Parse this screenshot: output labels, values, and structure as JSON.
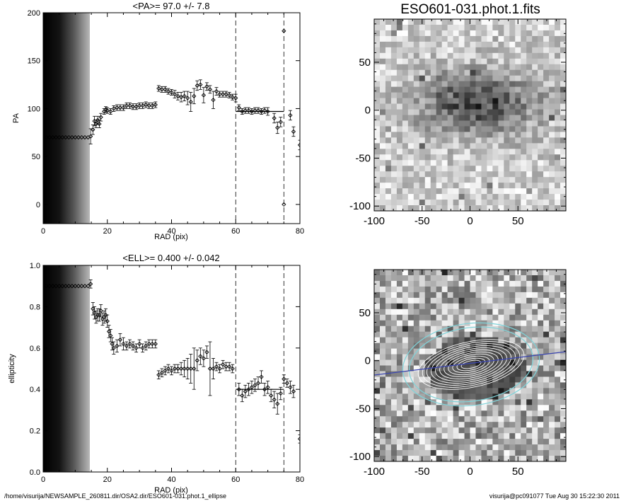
{
  "chart_data": [
    {
      "type": "scatter",
      "title": "<PA>=  97.0 +/-   7.8",
      "xlabel": "RAD (pix)",
      "ylabel": "PA",
      "xlim": [
        0,
        80
      ],
      "ylim": [
        -20,
        200
      ],
      "xticks": [
        0,
        20,
        40,
        60,
        80
      ],
      "yticks": [
        0,
        50,
        100,
        150,
        200
      ],
      "grid": false,
      "shaded_region_x": [
        0,
        14.5
      ],
      "vlines": [
        60,
        75
      ],
      "mean_line": {
        "x": [
          60,
          75
        ],
        "y": 97.0
      },
      "points": [
        [
          1,
          70,
          0
        ],
        [
          2,
          70,
          0
        ],
        [
          3,
          70,
          0
        ],
        [
          4,
          70,
          0
        ],
        [
          5,
          70,
          0
        ],
        [
          6,
          70,
          0
        ],
        [
          7,
          70,
          0
        ],
        [
          8,
          70,
          0
        ],
        [
          9,
          70,
          0
        ],
        [
          10,
          70,
          0
        ],
        [
          11,
          70,
          0
        ],
        [
          12,
          70,
          0
        ],
        [
          13,
          70,
          0
        ],
        [
          14,
          70,
          0
        ],
        [
          14.8,
          71,
          8
        ],
        [
          15.5,
          78,
          5
        ],
        [
          16,
          87,
          5
        ],
        [
          16.5,
          84,
          4
        ],
        [
          17,
          88,
          4
        ],
        [
          17.5,
          84,
          4
        ],
        [
          18,
          91,
          4
        ],
        [
          19,
          97,
          3
        ],
        [
          19.5,
          99,
          3
        ],
        [
          20,
          98,
          3
        ],
        [
          21,
          97,
          3
        ],
        [
          22,
          100,
          3
        ],
        [
          23,
          101,
          3
        ],
        [
          24,
          101,
          3
        ],
        [
          25,
          101,
          3
        ],
        [
          26,
          103,
          3
        ],
        [
          27,
          103,
          3
        ],
        [
          28,
          102,
          3
        ],
        [
          29,
          102,
          3
        ],
        [
          30,
          103,
          3
        ],
        [
          31,
          103,
          3
        ],
        [
          32,
          104,
          3
        ],
        [
          33,
          103,
          3
        ],
        [
          34,
          103,
          3
        ],
        [
          35,
          104,
          3
        ],
        [
          36,
          121,
          3
        ],
        [
          37,
          120,
          3
        ],
        [
          38,
          120,
          3
        ],
        [
          39,
          118,
          3
        ],
        [
          40,
          117,
          3
        ],
        [
          41,
          115,
          4
        ],
        [
          42,
          113,
          4
        ],
        [
          43,
          112,
          5
        ],
        [
          44,
          113,
          5
        ],
        [
          45,
          111,
          7
        ],
        [
          46,
          107,
          10
        ],
        [
          47,
          113,
          8
        ],
        [
          48,
          124,
          5
        ],
        [
          49,
          125,
          5
        ],
        [
          50,
          114,
          8
        ],
        [
          51,
          123,
          4
        ],
        [
          52,
          120,
          4
        ],
        [
          53,
          109,
          9
        ],
        [
          54,
          118,
          4
        ],
        [
          55,
          115,
          3
        ],
        [
          56,
          115,
          3
        ],
        [
          57,
          115,
          3
        ],
        [
          58,
          114,
          3
        ],
        [
          59,
          112,
          3
        ],
        [
          60,
          111,
          4
        ],
        [
          61,
          101,
          3
        ],
        [
          62,
          97,
          3
        ],
        [
          63,
          98,
          3
        ],
        [
          64,
          98,
          3
        ],
        [
          65,
          97,
          3
        ],
        [
          66,
          98,
          3
        ],
        [
          67,
          98,
          3
        ],
        [
          68,
          97,
          3
        ],
        [
          69,
          98,
          3
        ],
        [
          70,
          97,
          4
        ],
        [
          72,
          90,
          5
        ],
        [
          73,
          80,
          6
        ],
        [
          74,
          86,
          5
        ],
        [
          75,
          181,
          0
        ],
        [
          75,
          0,
          0
        ],
        [
          77,
          93,
          5
        ],
        [
          78,
          76,
          5
        ],
        [
          80,
          62,
          5
        ]
      ]
    },
    {
      "type": "scatter",
      "title": "<ELL>= 0.400 +/-  0.042",
      "xlabel": "RAD (pix)",
      "ylabel": "ellipticity",
      "xlim": [
        0,
        80
      ],
      "ylim": [
        0,
        1.0
      ],
      "xticks": [
        0,
        20,
        40,
        60,
        80
      ],
      "yticks": [
        0.0,
        0.2,
        0.4,
        0.6,
        0.8,
        1.0
      ],
      "grid": false,
      "shaded_region_x": [
        0,
        14.5
      ],
      "vlines": [
        60,
        75
      ],
      "mean_line": {
        "x": [
          60,
          75
        ],
        "y": 0.4
      },
      "points": [
        [
          1,
          0.9,
          0
        ],
        [
          2,
          0.9,
          0
        ],
        [
          3,
          0.9,
          0
        ],
        [
          4,
          0.9,
          0
        ],
        [
          5,
          0.9,
          0
        ],
        [
          6,
          0.9,
          0
        ],
        [
          7,
          0.9,
          0
        ],
        [
          8,
          0.9,
          0
        ],
        [
          9,
          0.9,
          0
        ],
        [
          10,
          0.9,
          0
        ],
        [
          11,
          0.9,
          0
        ],
        [
          12,
          0.9,
          0
        ],
        [
          13,
          0.9,
          0
        ],
        [
          14,
          0.9,
          0
        ],
        [
          14.8,
          0.91,
          0.02
        ],
        [
          15.5,
          0.79,
          0.03
        ],
        [
          16,
          0.77,
          0.03
        ],
        [
          16.5,
          0.75,
          0.03
        ],
        [
          17,
          0.76,
          0.03
        ],
        [
          17.5,
          0.76,
          0.03
        ],
        [
          18,
          0.78,
          0.03
        ],
        [
          18.5,
          0.74,
          0.03
        ],
        [
          19,
          0.75,
          0.03
        ],
        [
          19.5,
          0.76,
          0.03
        ],
        [
          20,
          0.73,
          0.03
        ],
        [
          20.5,
          0.68,
          0.03
        ],
        [
          21,
          0.66,
          0.03
        ],
        [
          21.5,
          0.62,
          0.03
        ],
        [
          22,
          0.6,
          0.03
        ],
        [
          23,
          0.61,
          0.03
        ],
        [
          24,
          0.64,
          0.03
        ],
        [
          25,
          0.62,
          0.03
        ],
        [
          26,
          0.61,
          0.02
        ],
        [
          27,
          0.62,
          0.02
        ],
        [
          28,
          0.61,
          0.02
        ],
        [
          29,
          0.6,
          0.02
        ],
        [
          30,
          0.62,
          0.02
        ],
        [
          31,
          0.6,
          0.02
        ],
        [
          32,
          0.61,
          0.02
        ],
        [
          33,
          0.62,
          0.02
        ],
        [
          34,
          0.62,
          0.02
        ],
        [
          35,
          0.62,
          0.02
        ],
        [
          36,
          0.47,
          0.02
        ],
        [
          37,
          0.48,
          0.02
        ],
        [
          38,
          0.49,
          0.02
        ],
        [
          39,
          0.5,
          0.02
        ],
        [
          40,
          0.49,
          0.02
        ],
        [
          41,
          0.5,
          0.02
        ],
        [
          42,
          0.5,
          0.02
        ],
        [
          43,
          0.5,
          0.03
        ],
        [
          44,
          0.5,
          0.04
        ],
        [
          45,
          0.5,
          0.05
        ],
        [
          46,
          0.5,
          0.07
        ],
        [
          47,
          0.5,
          0.1
        ],
        [
          48,
          0.54,
          0.05
        ],
        [
          49,
          0.56,
          0.04
        ],
        [
          50,
          0.55,
          0.04
        ],
        [
          51,
          0.58,
          0.03
        ],
        [
          52,
          0.5,
          0.13
        ],
        [
          53,
          0.5,
          0.05
        ],
        [
          54,
          0.51,
          0.02
        ],
        [
          55,
          0.5,
          0.02
        ],
        [
          56,
          0.52,
          0.02
        ],
        [
          57,
          0.51,
          0.02
        ],
        [
          58,
          0.51,
          0.02
        ],
        [
          59,
          0.5,
          0.02
        ],
        [
          61,
          0.4,
          0.03
        ],
        [
          62,
          0.37,
          0.03
        ],
        [
          63,
          0.39,
          0.03
        ],
        [
          64,
          0.4,
          0.03
        ],
        [
          65,
          0.41,
          0.03
        ],
        [
          66,
          0.42,
          0.03
        ],
        [
          67,
          0.43,
          0.03
        ],
        [
          68,
          0.46,
          0.03
        ],
        [
          69,
          0.4,
          0.03
        ],
        [
          70,
          0.41,
          0.03
        ],
        [
          71,
          0.37,
          0.03
        ],
        [
          72,
          0.35,
          0.04
        ],
        [
          73,
          0.33,
          0.05
        ],
        [
          74,
          0.38,
          0.03
        ],
        [
          75,
          0.45,
          0.02
        ],
        [
          76,
          0.43,
          0.02
        ],
        [
          77,
          0.41,
          0.03
        ],
        [
          78,
          0.39,
          0.03
        ],
        [
          80,
          0.16,
          0.02
        ]
      ]
    },
    {
      "type": "heatmap",
      "title": "ESO601-031.phot.1.fits",
      "xlim": [
        -100,
        100
      ],
      "ylim": [
        -105,
        95
      ],
      "xticks": [
        -100,
        -50,
        0,
        50
      ],
      "yticks": [
        -100,
        -50,
        0,
        50
      ],
      "colormap": "grayscale",
      "xlabel": "",
      "ylabel": ""
    },
    {
      "type": "heatmap",
      "title": "",
      "xlim": [
        -100,
        100
      ],
      "ylim": [
        -105,
        95
      ],
      "xticks": [
        -100,
        -50,
        0,
        50
      ],
      "yticks": [
        -100,
        -50,
        0,
        50
      ],
      "colormap": "grayscale",
      "overlays": [
        "white isophote contours",
        "cyan fitted ellipses",
        "blue major-axis line"
      ],
      "xlabel": "",
      "ylabel": ""
    }
  ],
  "footer": {
    "left": "/home/visurija/NEWSAMPLE_260811.dir/OSA2.dir/ESO601-031.phot.1_ellipse",
    "right": "visurija@pc091077  Tue Aug 30 15:22:30 2011"
  },
  "colors": {
    "axis": "#000000",
    "ellipse": "#7fd3d9",
    "major_axis": "#3a45b0",
    "contour": "#ffffff"
  }
}
